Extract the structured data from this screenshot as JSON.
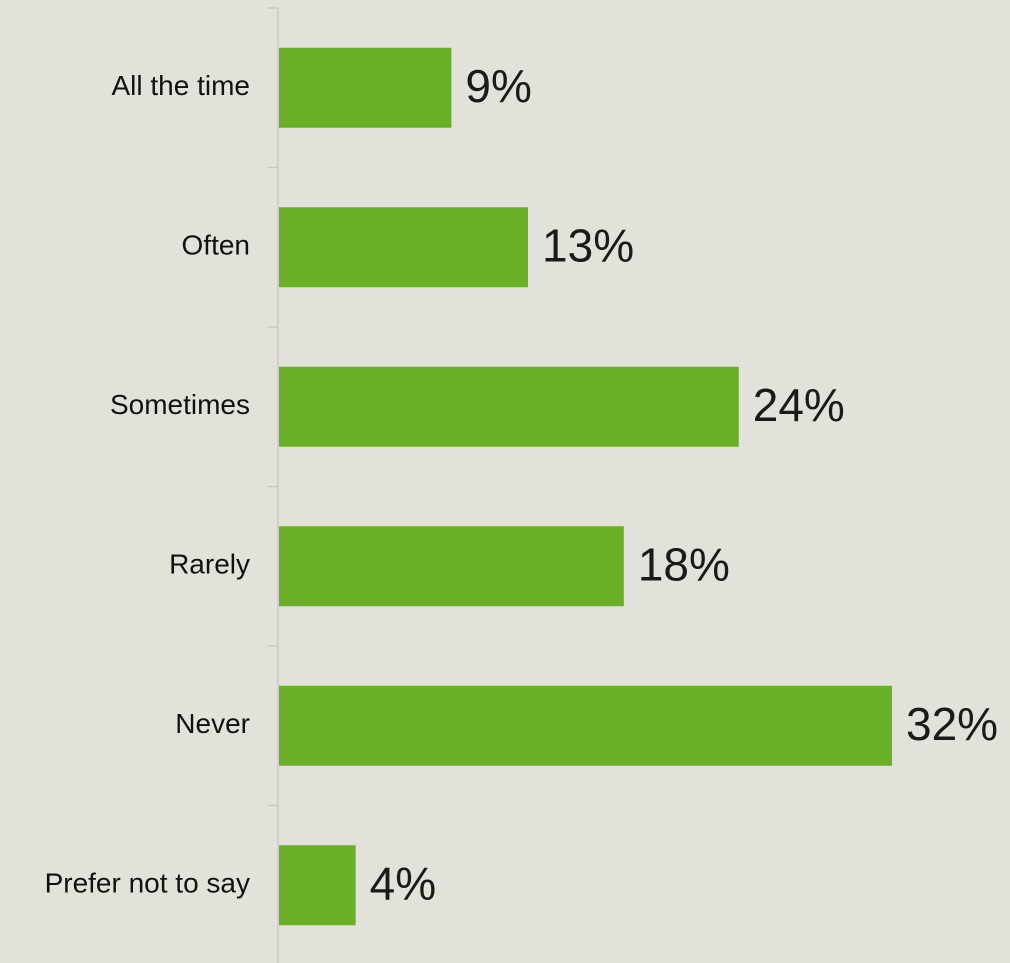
{
  "chart_data": {
    "type": "bar",
    "orientation": "horizontal",
    "categories": [
      "All the time",
      "Often",
      "Sometimes",
      "Rarely",
      "Never",
      "Prefer not to say"
    ],
    "values": [
      9,
      13,
      24,
      18,
      32,
      4
    ],
    "value_labels": [
      "9%",
      "13%",
      "24%",
      "18%",
      "32%",
      "4%"
    ],
    "xlim": [
      0,
      32
    ],
    "title": "",
    "xlabel": "",
    "ylabel": "",
    "grid": false,
    "legend": "none",
    "colors": {
      "bar": "#6ab026",
      "background": "#e2e2db",
      "axis": "#c9c9c2",
      "category_text": "#111111",
      "value_text": "#1a1a1a"
    }
  }
}
